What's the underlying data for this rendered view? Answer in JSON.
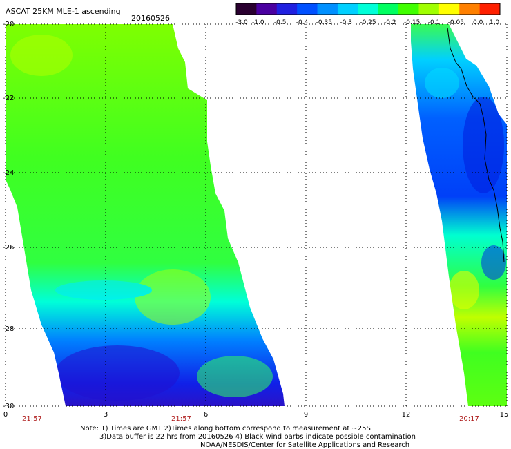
{
  "header": {
    "title": "ASCAT 25KM MLE-1 ascending",
    "date": "20160526"
  },
  "colorbar": {
    "labels": [
      "-3.0",
      "-1.0",
      "-0.5",
      "-0.4",
      "-0.35",
      "-0.3",
      "-0.25",
      "-0.2",
      "-0.15",
      "-0.1",
      "-0.05",
      "0.0",
      "1.0"
    ],
    "colors": [
      "#2a0030",
      "#4a00a0",
      "#2020e0",
      "#0050ff",
      "#0090ff",
      "#00d0ff",
      "#00ffd8",
      "#00ff60",
      "#40ff00",
      "#a0ff00",
      "#ffff00",
      "#ff8000",
      "#ff2000"
    ]
  },
  "axes": {
    "y_ticks": [
      "-20",
      "-22",
      "-24",
      "-26",
      "-28",
      "-30"
    ],
    "x_ticks": [
      "0",
      "3",
      "6",
      "9",
      "12",
      "15"
    ],
    "times": [
      "21:57",
      "21:57",
      "20:17"
    ],
    "xlim": [
      0,
      15
    ],
    "ylim": [
      -30,
      -20
    ]
  },
  "notes": {
    "line1": "Note: 1) Times are GMT 2)Times along bottom correspond to measurement at ~25S",
    "line2": "3)Data buffer is 22 hrs from 20160526 4) Black wind barbs indicate possible contamination",
    "line3": "NOAA/NESDIS/Center for Satellite Applications and Research"
  }
}
